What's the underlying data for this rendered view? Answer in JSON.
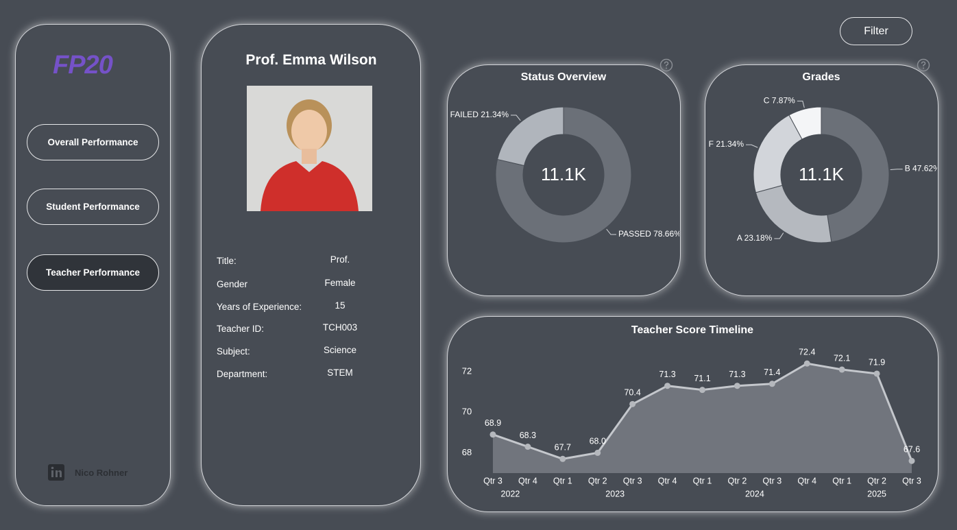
{
  "nav": {
    "logo": "FP20",
    "buttons": [
      "Overall Performance",
      "Student Performance",
      "Teacher Performance"
    ],
    "author": "Nico Rohner"
  },
  "filter_button": "Filter",
  "profile": {
    "name": "Prof. Emma Wilson",
    "fields": [
      {
        "label": "Title:",
        "value": "Prof."
      },
      {
        "label": "Gender",
        "value": "Female"
      },
      {
        "label": "Years of Experience:",
        "value": 15
      },
      {
        "label": "Teacher ID:",
        "value": "TCH003"
      },
      {
        "label": "Subject:",
        "value": "Science"
      },
      {
        "label": "Department:",
        "value": "STEM"
      }
    ]
  },
  "chart_data": [
    {
      "type": "donut",
      "title": "Status Overview",
      "center_label": "11.1K",
      "categories": [
        "PASSED",
        "FAILED"
      ],
      "values": [
        78.66,
        21.34
      ],
      "value_labels": [
        "78.66%",
        "21.34%"
      ],
      "colors": [
        "#6b7078",
        "#b0b5bc"
      ]
    },
    {
      "type": "donut",
      "title": "Grades",
      "center_label": "11.1K",
      "categories": [
        "B",
        "A",
        "F",
        "C"
      ],
      "values": [
        47.62,
        23.18,
        21.34,
        7.87
      ],
      "value_labels": [
        "47.62%",
        "23.18%",
        "21.34%",
        "7.87%"
      ],
      "colors": [
        "#6b7078",
        "#b5b9bf",
        "#d2d5da",
        "#f4f5f7"
      ]
    },
    {
      "type": "area",
      "title": "Teacher Score Timeline",
      "categories": [
        "Qtr 3",
        "Qtr 4",
        "Qtr 1",
        "Qtr 2",
        "Qtr 3",
        "Qtr 4",
        "Qtr 1",
        "Qtr 2",
        "Qtr 3",
        "Qtr 4",
        "Qtr 1",
        "Qtr 2",
        "Qtr 3"
      ],
      "years": [
        "2022",
        "2022",
        "2023",
        "2023",
        "2023",
        "2023",
        "2024",
        "2024",
        "2024",
        "2024",
        "2025",
        "2025",
        "2025"
      ],
      "values": [
        68.9,
        68.3,
        67.7,
        68.0,
        70.4,
        71.3,
        71.1,
        71.3,
        71.4,
        72.4,
        72.1,
        71.9,
        67.6
      ],
      "value_labels": [
        "68.9",
        "68.3",
        "67.7",
        "68.0",
        "70.4",
        "71.3",
        "71.1",
        "71.3",
        "71.4",
        "72.4",
        "72.1",
        "71.9",
        "67.6"
      ],
      "color": "#71757d",
      "line_color": "#c4c7cc",
      "ylim": [
        67,
        73
      ],
      "yticks": [
        68,
        70,
        72
      ],
      "grid": false
    }
  ]
}
